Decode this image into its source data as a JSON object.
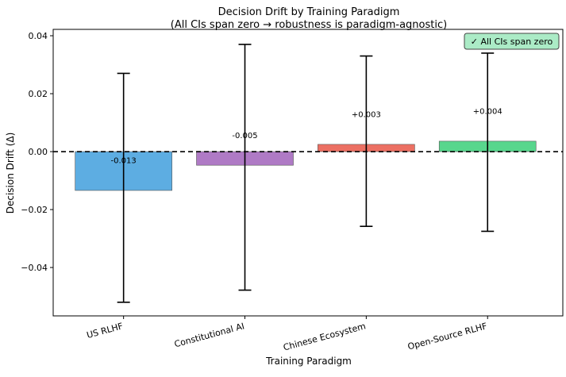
{
  "chart_data": {
    "type": "bar",
    "title": "Decision Drift by Training Paradigm",
    "subtitle": "(All CIs span zero → robustness is paradigm-agnostic)",
    "xlabel": "Training Paradigm",
    "ylabel": "Decision Drift (Δ)",
    "categories": [
      "US RLHF",
      "Constitutional AI",
      "Chinese Ecosystem",
      "Open-Source RLHF"
    ],
    "values": [
      -0.0134,
      -0.0047,
      0.0025,
      0.0036
    ],
    "value_labels": [
      "-0.013",
      "-0.005",
      "+0.003",
      "+0.004"
    ],
    "ci_low": [
      -0.052,
      -0.0478,
      -0.0258,
      -0.0275
    ],
    "ci_high": [
      0.027,
      0.037,
      0.033,
      0.034
    ],
    "colors": [
      "#5dade2",
      "#af7ac5",
      "#ec7063",
      "#58d68d"
    ],
    "ylim": [
      -0.0567,
      0.0422
    ],
    "yticks": [
      0.04,
      0.02,
      0.0,
      -0.02,
      -0.04
    ],
    "ytick_labels": [
      "0.04",
      "0.02",
      "0.00",
      "−0.02",
      "−0.04"
    ],
    "reference_line": {
      "y": 0,
      "style": "dashed",
      "color": "#000000"
    },
    "annotation_box": {
      "text": "✓ All CIs span zero",
      "fill": "#abebc6",
      "placement": "top-right"
    },
    "grid": false
  }
}
